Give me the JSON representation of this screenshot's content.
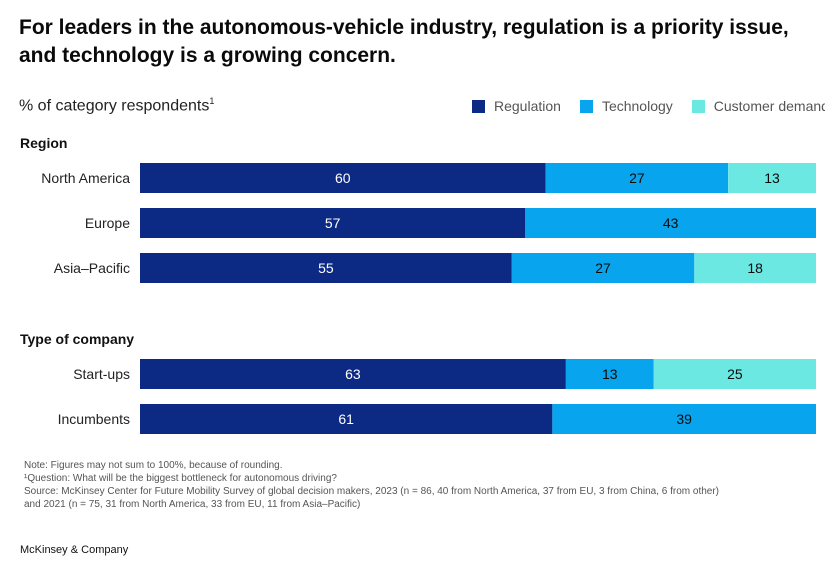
{
  "title": "For leaders in the autonomous-vehicle industry, regulation is a priority issue, and technology is a growing concern.",
  "subtitle": "% of category respondents",
  "subtitle_footnote": "1",
  "colors": {
    "Regulation": "#0c2a84",
    "Technology": "#08a5ee",
    "Customer demand": "#6ce8e2"
  },
  "chart_data": {
    "type": "bar",
    "orientation": "horizontal",
    "stacked": true,
    "series_names": [
      "Regulation",
      "Technology",
      "Customer demand"
    ],
    "xlim": [
      0,
      100
    ],
    "groups": [
      {
        "label": "Region",
        "rows": [
          {
            "category": "North America",
            "values": [
              60,
              27,
              13
            ]
          },
          {
            "category": "Europe",
            "values": [
              57,
              43,
              0
            ]
          },
          {
            "category": "Asia–Pacific",
            "values": [
              55,
              27,
              18
            ]
          }
        ]
      },
      {
        "label": "Type of company",
        "rows": [
          {
            "category": "Start-ups",
            "values": [
              63,
              13,
              25
            ]
          },
          {
            "category": "Incumbents",
            "values": [
              61,
              39,
              0
            ]
          }
        ]
      }
    ]
  },
  "notes": [
    "Note: Figures may not sum to 100%, because of rounding.",
    "¹Question: What will be the biggest bottleneck for autonomous driving?",
    "Source: McKinsey Center for Future Mobility Survey of global decision makers, 2023 (n = 86, 40 from North America, 37 from EU, 3 from China, 6 from other)",
    "and 2021 (n = 75, 31 from North America, 33 from EU, 11 from Asia–Pacific)"
  ],
  "footer": "McKinsey & Company"
}
